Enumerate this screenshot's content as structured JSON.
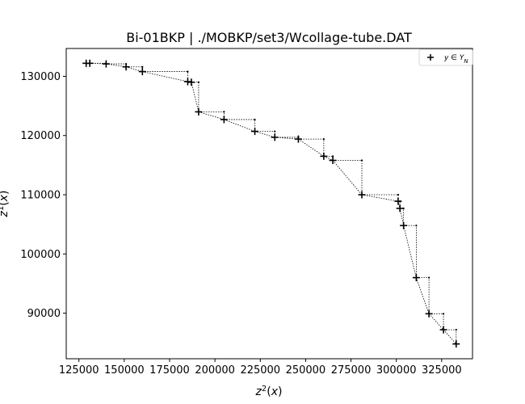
{
  "chart_data": {
    "type": "scatter",
    "title": "Bi-01BKP | ./MOBKP/set3/Wcollage-tube.DAT",
    "xlabel": "z²(x)",
    "ylabel": "z¹(x)",
    "xlim": [
      118000,
      342000
    ],
    "ylim": [
      82300,
      134700
    ],
    "xticks": [
      125000,
      150000,
      175000,
      200000,
      225000,
      250000,
      275000,
      300000,
      325000
    ],
    "xtick_labels": [
      "125000",
      "150000",
      "175000",
      "200000",
      "225000",
      "250000",
      "275000",
      "300000",
      "325000"
    ],
    "yticks": [
      90000,
      100000,
      110000,
      120000,
      130000
    ],
    "ytick_labels": [
      "90000",
      "100000",
      "110000",
      "120000",
      "130000"
    ],
    "grid": false,
    "legend_position": "top-right",
    "series": [
      {
        "name": "y ∈ Y_N",
        "marker": "plus",
        "color": "#000000",
        "points": [
          [
            129000,
            132200
          ],
          [
            131000,
            132200
          ],
          [
            140000,
            132100
          ],
          [
            151000,
            131600
          ],
          [
            160000,
            130800
          ],
          [
            185000,
            129100
          ],
          [
            187000,
            129000
          ],
          [
            191000,
            124000
          ],
          [
            205000,
            122700
          ],
          [
            222000,
            120700
          ],
          [
            233000,
            119700
          ],
          [
            246000,
            119400
          ],
          [
            260000,
            116500
          ],
          [
            265000,
            115800
          ],
          [
            281000,
            110000
          ],
          [
            301000,
            108900
          ],
          [
            302000,
            107700
          ],
          [
            304000,
            104800
          ],
          [
            311000,
            96000
          ],
          [
            318000,
            89900
          ],
          [
            326000,
            87200
          ],
          [
            333000,
            84800
          ]
        ]
      }
    ],
    "staircase": {
      "style": "dotted",
      "color": "#000000",
      "corner_marker": "dot"
    }
  }
}
